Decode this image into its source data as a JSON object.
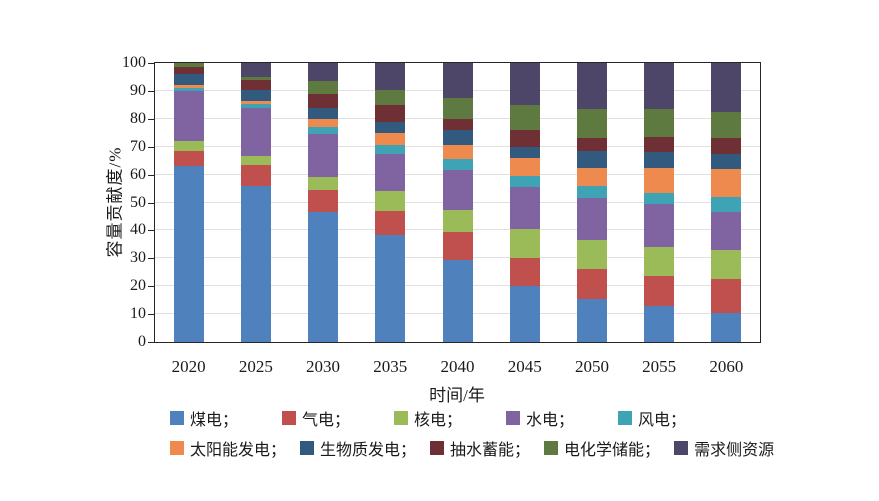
{
  "page": {
    "background": "#ffffff"
  },
  "chart_data": {
    "type": "bar",
    "stacked": true,
    "title": "",
    "xlabel": "时间/年",
    "ylabel": "容量贡献度/%",
    "categories": [
      "2020",
      "2025",
      "2030",
      "2035",
      "2040",
      "2045",
      "2050",
      "2055",
      "2060"
    ],
    "ylim": [
      0,
      100
    ],
    "y_ticks": [
      0,
      10,
      20,
      30,
      40,
      50,
      60,
      70,
      80,
      90,
      100
    ],
    "grid": "horizontal",
    "legend_position": "bottom",
    "series": [
      {
        "name": "煤电",
        "color": "#4F81BD",
        "values": [
          63,
          56,
          46.5,
          38.5,
          29.5,
          20,
          15.5,
          13,
          10.5
        ]
      },
      {
        "name": "气电",
        "color": "#C0504D",
        "values": [
          5.5,
          7.5,
          8,
          8.5,
          10,
          10,
          10.5,
          10.5,
          12
        ]
      },
      {
        "name": "核电",
        "color": "#9BBB59",
        "values": [
          3.5,
          3,
          4.5,
          7,
          8,
          10.5,
          10.5,
          10.5,
          10.5
        ]
      },
      {
        "name": "水电",
        "color": "#8064A2",
        "values": [
          18,
          17.5,
          15.5,
          13.5,
          14,
          15,
          15,
          15.5,
          13.5
        ]
      },
      {
        "name": "风电",
        "color": "#3FA3B6",
        "values": [
          1,
          1.5,
          2.5,
          3,
          4,
          4,
          4.5,
          4,
          5.5
        ]
      },
      {
        "name": "太阳能发电",
        "color": "#EE8A4D",
        "values": [
          1,
          1,
          3,
          4.5,
          5,
          6.5,
          6.5,
          9,
          10
        ]
      },
      {
        "name": "生物质发电",
        "color": "#315A7E",
        "values": [
          4,
          4,
          4,
          4,
          5.5,
          4,
          6,
          5.5,
          5.5
        ]
      },
      {
        "name": "抽水蓄能",
        "color": "#6E2F35",
        "values": [
          2.5,
          3.5,
          5,
          6,
          4,
          6,
          4.5,
          5.5,
          5.5
        ]
      },
      {
        "name": "电化学储能",
        "color": "#5F7A40",
        "values": [
          1.5,
          1,
          4.5,
          5.5,
          7.5,
          9,
          10.5,
          10,
          9.5
        ]
      },
      {
        "name": "需求侧资源",
        "color": "#4D4668",
        "values": [
          0,
          5,
          6.5,
          9.5,
          12.5,
          15,
          16.5,
          16.5,
          17.5
        ]
      }
    ],
    "legend_rows": [
      [
        "煤电；",
        "气电；",
        "核电；",
        "水电；",
        "风电；"
      ],
      [
        "太阳能发电；",
        "生物质发电；",
        "抽水蓄能；",
        "电化学储能；",
        "需求侧资源"
      ]
    ]
  }
}
